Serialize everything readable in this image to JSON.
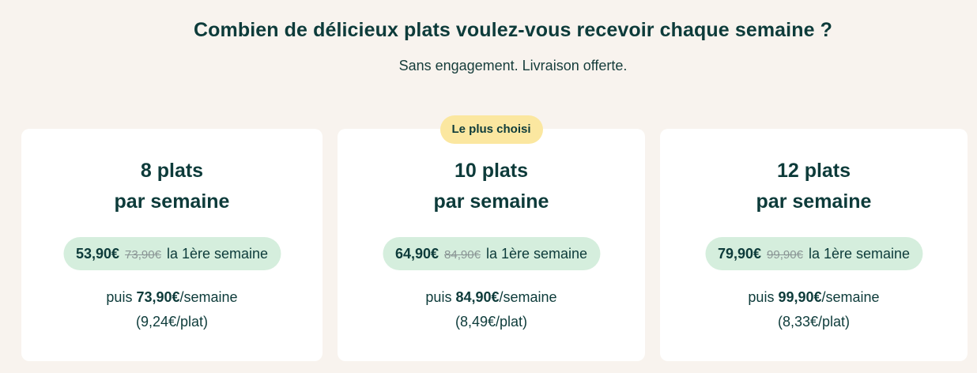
{
  "header": {
    "title": "Combien de délicieux plats voulez-vous recevoir chaque semaine ?",
    "subtitle": "Sans engagement. Livraison offerte."
  },
  "plans": [
    {
      "title_line1": "8 plats",
      "title_line2": "par semaine",
      "intro_price": "53,90€",
      "old_price": "73,90€",
      "intro_suffix": "la 1ère semaine",
      "then_prefix": "puis",
      "regular_price": "73,90€",
      "regular_suffix": "/semaine",
      "per_dish": "(9,24€/plat)"
    },
    {
      "badge": "Le plus choisi",
      "title_line1": "10 plats",
      "title_line2": "par semaine",
      "intro_price": "64,90€",
      "old_price": "84,90€",
      "intro_suffix": "la 1ère semaine",
      "then_prefix": "puis",
      "regular_price": "84,90€",
      "regular_suffix": "/semaine",
      "per_dish": "(8,49€/plat)"
    },
    {
      "title_line1": "12 plats",
      "title_line2": "par semaine",
      "intro_price": "79,90€",
      "old_price": "99,90€",
      "intro_suffix": "la 1ère semaine",
      "then_prefix": "puis",
      "regular_price": "99,90€",
      "regular_suffix": "/semaine",
      "per_dish": "(8,33€/plat)"
    }
  ],
  "colors": {
    "background": "#f8f3ee",
    "card": "#ffffff",
    "text": "#0d3b3a",
    "price_pill": "#d5eedd",
    "badge": "#fbe7a0"
  }
}
